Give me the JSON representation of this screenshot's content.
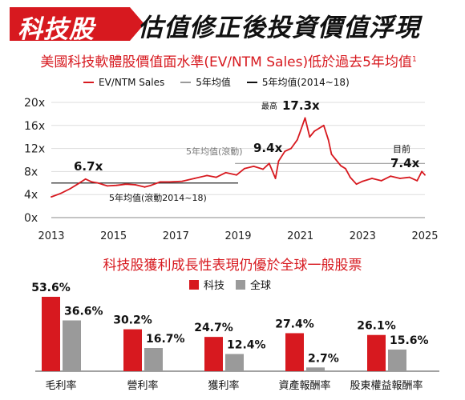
{
  "banner": {
    "tag": "科技股",
    "title": "估值修正後投資價值浮現"
  },
  "colors": {
    "accent": "#d7191f",
    "gray": "#9a9a9a",
    "dark": "#111111"
  },
  "chart_data": [
    {
      "type": "line",
      "title": "美國科技軟體股價值面水準(EV/NTM Sales)低於過去5年均值",
      "title_footnote": "1",
      "legend": [
        "EV/NTM Sales",
        "5年均值",
        "5年均值(2014~18)"
      ],
      "xlim": [
        2013,
        2025
      ],
      "xticks": [
        "2013",
        "2015",
        "2017",
        "2019",
        "2021",
        "2023",
        "2025"
      ],
      "ylim": [
        0,
        20
      ],
      "yticks": [
        "0x",
        "4x",
        "8x",
        "12x",
        "16x",
        "20x"
      ],
      "grid": "horizontal",
      "series": [
        {
          "name": "EV/NTM Sales",
          "x": [
            2013.0,
            2013.3,
            2013.6,
            2013.9,
            2014.1,
            2014.3,
            2014.5,
            2014.8,
            2015.1,
            2015.4,
            2015.7,
            2016.0,
            2016.2,
            2016.5,
            2016.8,
            2017.2,
            2017.6,
            2018.0,
            2018.3,
            2018.6,
            2018.95,
            2019.2,
            2019.5,
            2019.8,
            2020.0,
            2020.2,
            2020.3,
            2020.5,
            2020.7,
            2020.9,
            2021.0,
            2021.15,
            2021.3,
            2021.45,
            2021.6,
            2021.75,
            2021.9,
            2022.0,
            2022.15,
            2022.3,
            2022.45,
            2022.6,
            2022.8,
            2023.0,
            2023.3,
            2023.6,
            2023.9,
            2024.2,
            2024.5,
            2024.75,
            2024.9,
            2025.0
          ],
          "values": [
            3.6,
            4.2,
            5.0,
            6.0,
            6.7,
            6.2,
            6.0,
            5.5,
            5.6,
            5.8,
            5.7,
            5.3,
            5.6,
            6.2,
            6.2,
            6.3,
            6.8,
            7.3,
            7.0,
            7.8,
            7.4,
            8.5,
            8.9,
            8.4,
            9.4,
            6.8,
            9.8,
            11.5,
            12.0,
            13.5,
            15.0,
            17.3,
            14.0,
            15.0,
            15.5,
            16.0,
            13.5,
            11.0,
            10.0,
            9.0,
            8.5,
            7.0,
            5.8,
            6.3,
            6.8,
            6.4,
            7.2,
            6.8,
            7.0,
            6.4,
            8.0,
            7.4
          ]
        },
        {
          "name": "5年均值",
          "x": [
            2018.9,
            2025.0
          ],
          "values": [
            9.4,
            9.4
          ]
        },
        {
          "name": "5年均值(2014~18)",
          "x": [
            2013.0,
            2019.0
          ],
          "values": [
            6.0,
            6.0
          ]
        }
      ],
      "annotations": {
        "start_value": "6.7x",
        "peak_label": "最高",
        "peak_value": "17.3x",
        "rolling_label": "5年均值(滾動)",
        "rolling_value": "9.4x",
        "current_label": "目前",
        "current_value": "7.4x",
        "avg_label": "5年均值(滾動2014~18)"
      }
    },
    {
      "type": "bar",
      "title": "科技股獲利成長性表現仍優於全球一般股票",
      "categories": [
        "毛利率",
        "營利率",
        "獲利率",
        "資產報酬率",
        "股東權益報酬率"
      ],
      "series": [
        {
          "name": "科技",
          "values": [
            53.6,
            30.2,
            24.7,
            27.4,
            26.1
          ],
          "labels": [
            "53.6%",
            "30.2%",
            "24.7%",
            "27.4%",
            "26.1%"
          ]
        },
        {
          "name": "全球",
          "values": [
            36.6,
            16.7,
            12.4,
            2.7,
            15.6
          ],
          "labels": [
            "36.6%",
            "16.7%",
            "12.4%",
            "2.7%",
            "15.6%"
          ]
        }
      ],
      "ylim": [
        0,
        60
      ],
      "legend_position": "top-center"
    }
  ]
}
